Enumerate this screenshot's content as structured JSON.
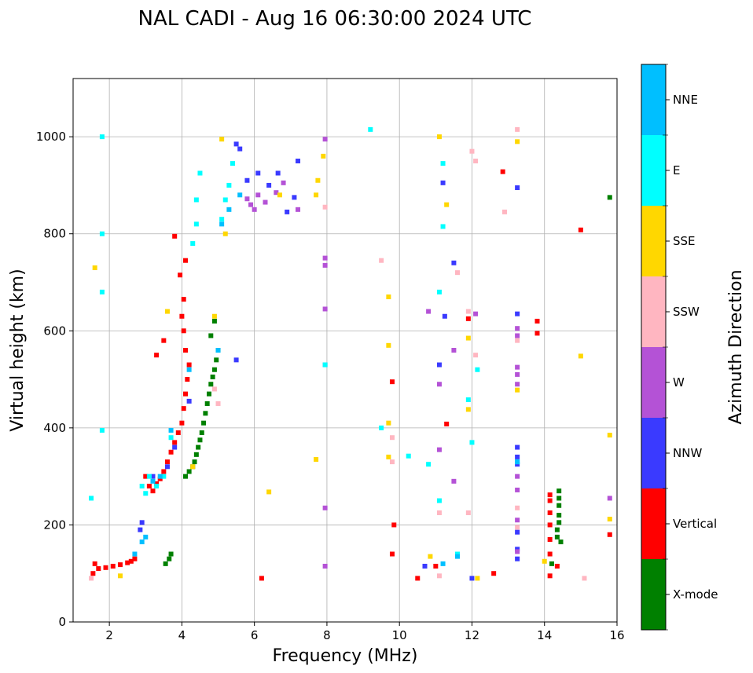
{
  "chart_data": {
    "type": "scatter",
    "title": "NAL CADI - Aug 16 06:30:00 2024 UTC",
    "xlabel": "Frequency (MHz)",
    "ylabel": "Virtual height (km)",
    "xlim": [
      1,
      16
    ],
    "ylim": [
      0,
      1120
    ],
    "xticks": [
      2,
      4,
      6,
      8,
      10,
      12,
      14,
      16
    ],
    "yticks": [
      0,
      200,
      400,
      600,
      800,
      1000
    ],
    "grid": true,
    "colorbar": {
      "label": "Azimuth Direction",
      "categories": [
        {
          "name": "X-mode",
          "color": "#008000"
        },
        {
          "name": "Vertical",
          "color": "#ff0000"
        },
        {
          "name": "NNW",
          "color": "#3a3aff"
        },
        {
          "name": "W",
          "color": "#b452d6"
        },
        {
          "name": "SSW",
          "color": "#ffb6c1"
        },
        {
          "name": "SSE",
          "color": "#ffd700"
        },
        {
          "name": "E",
          "color": "#00ffff"
        },
        {
          "name": "NNE",
          "color": "#00bfff"
        }
      ]
    },
    "series": [
      {
        "name": "X-mode",
        "points": [
          [
            3.55,
            120
          ],
          [
            3.65,
            130
          ],
          [
            3.7,
            140
          ],
          [
            4.1,
            300
          ],
          [
            4.2,
            310
          ],
          [
            4.3,
            320
          ],
          [
            4.35,
            330
          ],
          [
            4.4,
            345
          ],
          [
            4.45,
            360
          ],
          [
            4.5,
            375
          ],
          [
            4.55,
            390
          ],
          [
            4.6,
            410
          ],
          [
            4.65,
            430
          ],
          [
            4.7,
            450
          ],
          [
            4.75,
            470
          ],
          [
            4.8,
            490
          ],
          [
            4.85,
            505
          ],
          [
            4.9,
            520
          ],
          [
            4.95,
            540
          ],
          [
            5.0,
            560
          ],
          [
            4.8,
            590
          ],
          [
            4.9,
            620
          ],
          [
            14.2,
            120
          ],
          [
            14.35,
            175
          ],
          [
            14.35,
            190
          ],
          [
            14.4,
            205
          ],
          [
            14.4,
            220
          ],
          [
            14.4,
            240
          ],
          [
            14.4,
            255
          ],
          [
            14.4,
            270
          ],
          [
            14.45,
            165
          ],
          [
            15.8,
            875
          ]
        ]
      },
      {
        "name": "Vertical",
        "points": [
          [
            1.55,
            100
          ],
          [
            1.6,
            120
          ],
          [
            1.7,
            110
          ],
          [
            1.9,
            112
          ],
          [
            2.1,
            115
          ],
          [
            2.3,
            118
          ],
          [
            2.5,
            122
          ],
          [
            2.6,
            125
          ],
          [
            2.7,
            130
          ],
          [
            3.0,
            300
          ],
          [
            3.1,
            280
          ],
          [
            3.2,
            270
          ],
          [
            3.3,
            285
          ],
          [
            3.4,
            295
          ],
          [
            3.5,
            310
          ],
          [
            3.6,
            330
          ],
          [
            3.7,
            350
          ],
          [
            3.8,
            370
          ],
          [
            3.9,
            390
          ],
          [
            4.0,
            410
          ],
          [
            4.05,
            440
          ],
          [
            4.1,
            470
          ],
          [
            4.15,
            500
          ],
          [
            4.2,
            530
          ],
          [
            4.1,
            560
          ],
          [
            4.05,
            600
          ],
          [
            4.0,
            630
          ],
          [
            4.05,
            665
          ],
          [
            3.95,
            715
          ],
          [
            3.8,
            795
          ],
          [
            3.5,
            580
          ],
          [
            3.3,
            550
          ],
          [
            4.1,
            745
          ],
          [
            6.2,
            90
          ],
          [
            9.8,
            495
          ],
          [
            9.8,
            140
          ],
          [
            9.85,
            200
          ],
          [
            10.5,
            90
          ],
          [
            11.0,
            115
          ],
          [
            11.3,
            408
          ],
          [
            11.9,
            625
          ],
          [
            12.6,
            100
          ],
          [
            12.85,
            928
          ],
          [
            13.8,
            620
          ],
          [
            13.8,
            595
          ],
          [
            14.15,
            95
          ],
          [
            14.15,
            140
          ],
          [
            14.15,
            170
          ],
          [
            14.15,
            200
          ],
          [
            14.15,
            225
          ],
          [
            14.15,
            250
          ],
          [
            14.15,
            262
          ],
          [
            14.35,
            115
          ],
          [
            15.0,
            808
          ],
          [
            15.8,
            180
          ]
        ]
      },
      {
        "name": "NNW",
        "points": [
          [
            2.85,
            190
          ],
          [
            2.9,
            205
          ],
          [
            3.2,
            300
          ],
          [
            3.6,
            320
          ],
          [
            3.8,
            360
          ],
          [
            4.2,
            455
          ],
          [
            5.5,
            540
          ],
          [
            5.5,
            985
          ],
          [
            5.6,
            975
          ],
          [
            5.8,
            910
          ],
          [
            6.1,
            925
          ],
          [
            6.4,
            900
          ],
          [
            6.65,
            925
          ],
          [
            6.9,
            845
          ],
          [
            7.1,
            875
          ],
          [
            7.2,
            950
          ],
          [
            10.7,
            115
          ],
          [
            11.1,
            530
          ],
          [
            11.2,
            905
          ],
          [
            11.25,
            630
          ],
          [
            11.5,
            740
          ],
          [
            12.0,
            90
          ],
          [
            13.25,
            130
          ],
          [
            13.25,
            150
          ],
          [
            13.25,
            185
          ],
          [
            13.25,
            325
          ],
          [
            13.25,
            340
          ],
          [
            13.25,
            360
          ],
          [
            13.25,
            635
          ],
          [
            13.25,
            895
          ]
        ]
      },
      {
        "name": "W",
        "points": [
          [
            5.8,
            872
          ],
          [
            5.9,
            860
          ],
          [
            6.0,
            850
          ],
          [
            6.1,
            880
          ],
          [
            6.3,
            865
          ],
          [
            6.6,
            885
          ],
          [
            6.8,
            905
          ],
          [
            7.2,
            850
          ],
          [
            7.95,
            115
          ],
          [
            7.95,
            235
          ],
          [
            7.95,
            530
          ],
          [
            7.95,
            645
          ],
          [
            7.95,
            735
          ],
          [
            7.95,
            750
          ],
          [
            7.95,
            995
          ],
          [
            10.8,
            640
          ],
          [
            11.1,
            355
          ],
          [
            11.1,
            490
          ],
          [
            11.5,
            290
          ],
          [
            11.5,
            560
          ],
          [
            12.1,
            635
          ],
          [
            13.25,
            145
          ],
          [
            13.25,
            210
          ],
          [
            13.25,
            272
          ],
          [
            13.25,
            300
          ],
          [
            13.25,
            490
          ],
          [
            13.25,
            510
          ],
          [
            13.25,
            525
          ],
          [
            13.25,
            605
          ],
          [
            13.25,
            590
          ],
          [
            15.8,
            255
          ]
        ]
      },
      {
        "name": "SSW",
        "points": [
          [
            1.5,
            90
          ],
          [
            4.9,
            480
          ],
          [
            5.0,
            450
          ],
          [
            7.95,
            855
          ],
          [
            9.5,
            745
          ],
          [
            9.8,
            330
          ],
          [
            9.8,
            380
          ],
          [
            11.1,
            95
          ],
          [
            11.1,
            225
          ],
          [
            11.6,
            720
          ],
          [
            11.9,
            225
          ],
          [
            11.9,
            640
          ],
          [
            12.0,
            970
          ],
          [
            12.1,
            550
          ],
          [
            12.1,
            950
          ],
          [
            12.9,
            845
          ],
          [
            13.25,
            1015
          ],
          [
            13.25,
            580
          ],
          [
            13.25,
            235
          ],
          [
            13.25,
            195
          ],
          [
            15.1,
            90
          ]
        ]
      },
      {
        "name": "SSE",
        "points": [
          [
            1.6,
            730
          ],
          [
            2.3,
            95
          ],
          [
            3.6,
            640
          ],
          [
            4.3,
            320
          ],
          [
            4.9,
            630
          ],
          [
            5.1,
            995
          ],
          [
            5.2,
            800
          ],
          [
            6.4,
            268
          ],
          [
            6.7,
            880
          ],
          [
            7.7,
            880
          ],
          [
            7.75,
            910
          ],
          [
            7.7,
            335
          ],
          [
            7.9,
            960
          ],
          [
            9.7,
            340
          ],
          [
            9.7,
            410
          ],
          [
            9.7,
            570
          ],
          [
            9.7,
            670
          ],
          [
            10.85,
            135
          ],
          [
            11.1,
            1000
          ],
          [
            11.3,
            860
          ],
          [
            11.9,
            438
          ],
          [
            11.9,
            585
          ],
          [
            12.15,
            90
          ],
          [
            13.25,
            478
          ],
          [
            13.25,
            990
          ],
          [
            14.0,
            125
          ],
          [
            15.0,
            548
          ],
          [
            15.8,
            212
          ],
          [
            15.8,
            385
          ]
        ]
      },
      {
        "name": "E",
        "points": [
          [
            1.5,
            255
          ],
          [
            1.8,
            395
          ],
          [
            1.8,
            680
          ],
          [
            1.8,
            800
          ],
          [
            1.8,
            1000
          ],
          [
            2.9,
            280
          ],
          [
            3.0,
            265
          ],
          [
            3.1,
            300
          ],
          [
            3.3,
            280
          ],
          [
            3.5,
            300
          ],
          [
            3.7,
            380
          ],
          [
            4.3,
            780
          ],
          [
            4.4,
            820
          ],
          [
            4.4,
            870
          ],
          [
            4.5,
            925
          ],
          [
            5.1,
            830
          ],
          [
            5.2,
            870
          ],
          [
            5.3,
            900
          ],
          [
            5.4,
            945
          ],
          [
            7.95,
            530
          ],
          [
            9.2,
            1015
          ],
          [
            9.5,
            400
          ],
          [
            10.25,
            342
          ],
          [
            10.8,
            325
          ],
          [
            11.1,
            250
          ],
          [
            11.1,
            680
          ],
          [
            11.2,
            815
          ],
          [
            11.2,
            945
          ],
          [
            11.6,
            140
          ],
          [
            11.9,
            458
          ],
          [
            12.0,
            370
          ],
          [
            12.15,
            520
          ],
          [
            13.25,
            330
          ]
        ]
      },
      {
        "name": "NNE",
        "points": [
          [
            2.7,
            140
          ],
          [
            2.9,
            165
          ],
          [
            3.0,
            175
          ],
          [
            3.2,
            290
          ],
          [
            3.4,
            300
          ],
          [
            3.7,
            395
          ],
          [
            4.2,
            520
          ],
          [
            5.0,
            560
          ],
          [
            5.1,
            820
          ],
          [
            5.3,
            850
          ],
          [
            5.6,
            880
          ],
          [
            11.2,
            120
          ],
          [
            11.6,
            135
          ],
          [
            13.25,
            330
          ]
        ]
      }
    ]
  }
}
